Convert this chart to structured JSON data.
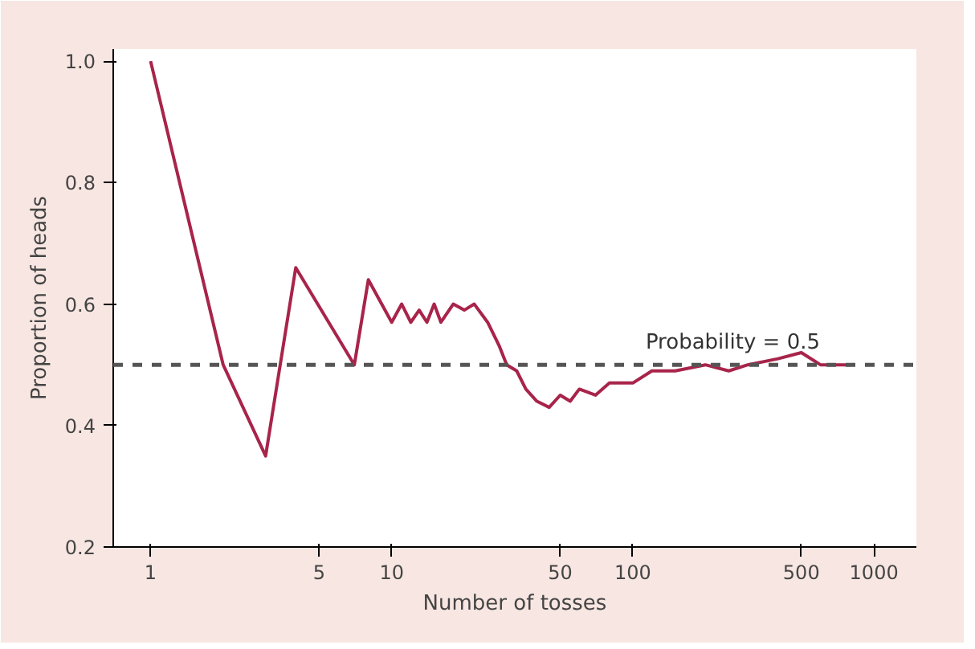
{
  "chart_data": {
    "type": "line",
    "xlabel": "Number of tosses",
    "ylabel": "Proportion of heads",
    "log": "x",
    "grid": false,
    "marker": "none",
    "line_style": "solid",
    "x": [
      1,
      2,
      3,
      4,
      7,
      8,
      10,
      11,
      12,
      13,
      14,
      15,
      16,
      18,
      20,
      22,
      25,
      28,
      30,
      33,
      36,
      40,
      45,
      50,
      55,
      60,
      70,
      80,
      100,
      120,
      150,
      200,
      250,
      300,
      400,
      500,
      600,
      800
    ],
    "series": [
      {
        "color": "#a8244a",
        "values": [
          1.0,
          0.5,
          0.35,
          0.66,
          0.5,
          0.64,
          0.57,
          0.6,
          0.57,
          0.59,
          0.57,
          0.6,
          0.57,
          0.6,
          0.59,
          0.6,
          0.57,
          0.53,
          0.5,
          0.49,
          0.46,
          0.44,
          0.43,
          0.45,
          0.44,
          0.46,
          0.45,
          0.47,
          0.47,
          0.49,
          0.49,
          0.5,
          0.49,
          0.5,
          0.51,
          0.52,
          0.5,
          0.5
        ]
      }
    ],
    "xlim": [
      0.7,
      1500
    ],
    "ylim": [
      0.2,
      1.02
    ],
    "xticks": [
      1,
      5,
      10,
      50,
      100,
      500,
      1000
    ],
    "yticks": [
      0.2,
      0.4,
      0.6,
      0.8,
      {
        "value": 1.0,
        "label": "1.0"
      }
    ],
    "ref_lines": [
      {
        "axis": "y",
        "value": 0.5,
        "label": "Probability = 0.5",
        "color": "#555555",
        "line_style": "dashed"
      }
    ]
  }
}
